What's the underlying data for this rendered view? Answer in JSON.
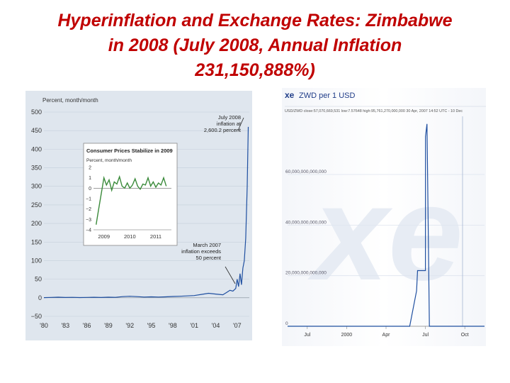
{
  "slide": {
    "title_lines": [
      "Hyperinflation and Exchange Rates: Zimbabwe",
      "in 2008 (July 2008, Annual Inflation",
      "231,150,888%)"
    ]
  },
  "colors": {
    "title": "#c00000",
    "line_blue": "#1f4fa0",
    "inset_green": "#3a8a3a"
  },
  "chart_data": [
    {
      "type": "line",
      "ylabel": "Percent, month/month",
      "ylim": [
        -50,
        500
      ],
      "yticks": [
        "500",
        "450",
        "400",
        "350",
        "300",
        "250",
        "200",
        "150",
        "100",
        "50",
        "0",
        "−50"
      ],
      "ytick_values": [
        500,
        450,
        400,
        350,
        300,
        250,
        200,
        150,
        100,
        50,
        0,
        -50
      ],
      "xticks": [
        "'80",
        "'83",
        "'86",
        "'89",
        "'92",
        "'95",
        "'98",
        "'01",
        "'04",
        "'07"
      ],
      "xtick_years": [
        1980,
        1983,
        1986,
        1989,
        1992,
        1995,
        1998,
        2001,
        2004,
        2007
      ],
      "xlim": [
        1980,
        2008.7
      ],
      "annotations": [
        {
          "lines": [
            "July 2008",
            "inflation at",
            "2,600.2 percent"
          ]
        },
        {
          "lines": [
            "March 2007",
            "inflation exceeds",
            "50 percent"
          ]
        }
      ],
      "series": [
        {
          "x": [
            1980,
            1981,
            1982,
            1983,
            1984,
            1985,
            1986,
            1987,
            1988,
            1989,
            1990,
            1991,
            1992,
            1993,
            1994,
            1995,
            1996,
            1997,
            1998,
            1999,
            2000,
            2001,
            2002,
            2003,
            2004,
            2005,
            2005.5,
            2006,
            2006.4,
            2006.8,
            2007.0,
            2007.2,
            2007.4,
            2007.6,
            2007.8,
            2008.0,
            2008.2,
            2008.4,
            2008.55
          ],
          "y": [
            0.5,
            1,
            1.5,
            0.8,
            1.2,
            0.6,
            1,
            1.4,
            0.8,
            1.5,
            1.2,
            3,
            4,
            3,
            2,
            2.5,
            2,
            2.5,
            3.5,
            4,
            5,
            6,
            9,
            12,
            10,
            8,
            14,
            20,
            18,
            25,
            50,
            30,
            65,
            35,
            80,
            100,
            160,
            300,
            460
          ]
        }
      ],
      "inset": {
        "title": "Consumer Prices Stabilize in 2009",
        "ylabel": "Percent, month/month",
        "ylim": [
          -4,
          2
        ],
        "yticks": [
          "2",
          "1",
          "0",
          "−1",
          "−2",
          "−3",
          "−4"
        ],
        "ytick_values": [
          2,
          1,
          0,
          -1,
          -2,
          -3,
          -4
        ],
        "xticks": [
          "2009",
          "2010",
          "2011"
        ],
        "xtick_values": [
          2009,
          2010,
          2011
        ],
        "xlim": [
          2008.6,
          2011.6
        ],
        "x": [
          2008.7,
          2008.8,
          2008.9,
          2009.0,
          2009.1,
          2009.2,
          2009.3,
          2009.4,
          2009.5,
          2009.6,
          2009.7,
          2009.8,
          2009.9,
          2010.0,
          2010.1,
          2010.2,
          2010.3,
          2010.4,
          2010.5,
          2010.6,
          2010.7,
          2010.8,
          2010.9,
          2011.0,
          2011.1,
          2011.2,
          2011.3,
          2011.4
        ],
        "y": [
          -3.5,
          -2,
          -0.5,
          1,
          0.3,
          0.8,
          -0.2,
          0.6,
          0.4,
          1.1,
          0.2,
          0,
          0.5,
          0,
          0.3,
          0.9,
          0.2,
          -0.1,
          0.4,
          0.3,
          1.0,
          0.2,
          0.6,
          0.1,
          0.5,
          0.3,
          1.0,
          0.2
        ]
      }
    },
    {
      "type": "line",
      "logo": "xe",
      "title": "ZWD per 1 USD",
      "subtitle": "USD/ZWD  close:57,070,669,531  low:7.57648  high:95,761,270,000,000      30 Apr, 2007 14:52 UTC - 10 Dec",
      "yticks": [
        "60,000,000,000,000",
        "40,000,000,000,000",
        "20,000,000,000,000",
        "0"
      ],
      "ytick_values": [
        60000000000000,
        40000000000000,
        20000000000000,
        0
      ],
      "ylim": [
        0,
        83000000000000
      ],
      "xticks": [
        "Jul",
        "2000",
        "Apr",
        "Jul",
        "Oct"
      ],
      "xtick_values": [
        0.1,
        0.3,
        0.5,
        0.7,
        0.9
      ],
      "xlim": [
        0,
        1
      ],
      "watermark": "xe",
      "series": [
        {
          "x": [
            0,
            0.55,
            0.62,
            0.655,
            0.66,
            0.7,
            0.7005,
            0.708,
            0.72,
            0.8,
            1.0
          ],
          "y": [
            0,
            0,
            0,
            14000000000000,
            22000000000000,
            22000000000000,
            75000000000000,
            80000000000000,
            0,
            0,
            0
          ]
        }
      ]
    }
  ]
}
